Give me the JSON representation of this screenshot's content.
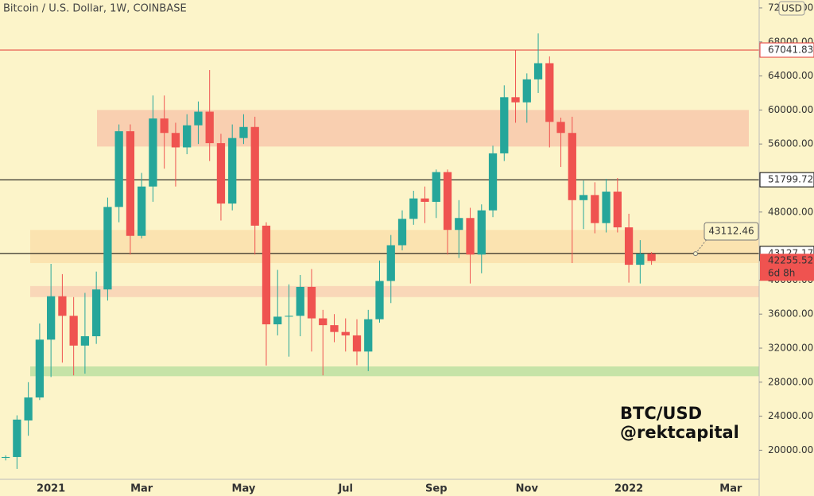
{
  "chart_data": {
    "type": "candlestick",
    "title": "Bitcoin / U.S. Dollar, 1W, COINBASE",
    "currency": "USD",
    "categories": [
      null,
      null,
      null,
      null,
      "2021",
      null,
      null,
      null,
      null,
      null,
      null,
      null,
      "Mar",
      null,
      null,
      null,
      null,
      null,
      null,
      null,
      null,
      "May",
      null,
      null,
      null,
      null,
      null,
      null,
      null,
      null,
      "Jul",
      null,
      null,
      null,
      null,
      null,
      null,
      null,
      "Sep",
      null,
      null,
      null,
      null,
      null,
      null,
      null,
      "Nov",
      null,
      null,
      null,
      null,
      null,
      null,
      null,
      null,
      "2022",
      null,
      null,
      null,
      null,
      null,
      null,
      null,
      null,
      "Mar",
      null,
      null
    ],
    "open": [
      19100,
      19200,
      23500,
      26200,
      33000,
      38100,
      35800,
      32300,
      33400,
      38900,
      48600,
      57500,
      45200,
      51000,
      59000,
      57300,
      55600,
      58200,
      59800,
      56100,
      49000,
      56700,
      58000,
      46400,
      34800,
      35700,
      35800,
      39200,
      35500,
      34700,
      33900,
      33500,
      31600,
      35400,
      39900,
      44100,
      47200,
      49600,
      49200,
      52700,
      45900,
      47300,
      43000,
      48200,
      54900,
      61500,
      60900,
      63600,
      65500,
      58600,
      57300,
      49400,
      50000,
      46700,
      50400,
      46200,
      41800,
      43100,
      null,
      null,
      null,
      null,
      null,
      null,
      null,
      null,
      null
    ],
    "high": [
      19400,
      24100,
      28000,
      34900,
      41900,
      40700,
      38000,
      38500,
      41000,
      49700,
      58300,
      58300,
      52600,
      61700,
      61700,
      58500,
      59500,
      61000,
      64700,
      57200,
      58300,
      59500,
      59200,
      46800,
      41200,
      39500,
      40600,
      41300,
      36500,
      36000,
      35500,
      35400,
      36500,
      42300,
      45300,
      48200,
      50500,
      51000,
      53000,
      53000,
      49400,
      48500,
      48900,
      55800,
      62900,
      67000,
      64300,
      69000,
      66300,
      59100,
      59200,
      51700,
      51500,
      51900,
      52000,
      47800,
      44700,
      43300,
      null,
      null,
      null,
      null,
      null,
      null,
      null,
      null,
      null
    ],
    "low": [
      18800,
      17800,
      21700,
      25900,
      28600,
      30300,
      28800,
      29000,
      32500,
      37600,
      46800,
      43000,
      44900,
      49200,
      53100,
      51000,
      54800,
      56000,
      54000,
      47000,
      48200,
      56000,
      43000,
      29950,
      33500,
      31000,
      33400,
      31600,
      28800,
      32700,
      31600,
      30000,
      29300,
      35000,
      37300,
      43500,
      46500,
      46700,
      47300,
      43000,
      42600,
      39600,
      40800,
      47400,
      54000,
      58500,
      58500,
      62000,
      55600,
      53300,
      42000,
      46000,
      45500,
      45600,
      45600,
      39700,
      39600,
      41800,
      null,
      null,
      null,
      null,
      null,
      null,
      null,
      null,
      null
    ],
    "close": [
      19200,
      23600,
      26200,
      33000,
      38100,
      35800,
      32300,
      33400,
      38900,
      48600,
      57500,
      45200,
      51000,
      59000,
      57300,
      55600,
      58200,
      59800,
      56100,
      49000,
      56700,
      58000,
      46400,
      34800,
      35700,
      35800,
      39200,
      35500,
      34700,
      33900,
      33500,
      31600,
      35400,
      39900,
      44100,
      47200,
      49600,
      49200,
      52700,
      45900,
      47300,
      43000,
      48200,
      54900,
      61500,
      60900,
      63600,
      65500,
      58600,
      57300,
      49400,
      50000,
      46700,
      50400,
      46200,
      41800,
      43100,
      42255.52,
      null,
      null,
      null,
      null,
      null,
      null,
      null,
      null,
      null
    ],
    "up_color": "#26a69a",
    "down_color": "#ef5350",
    "countdown": "6d 8h",
    "ylim": [
      16860,
      72930
    ],
    "yticks": [
      {
        "value": 72000,
        "label": "72000.00"
      },
      {
        "value": 68000,
        "label": "68000.00"
      },
      {
        "value": 64000,
        "label": "64000.00"
      },
      {
        "value": 60000,
        "label": "60000.00"
      },
      {
        "value": 56000,
        "label": "56000.00"
      },
      {
        "value": 48000,
        "label": "48000.00"
      },
      {
        "value": 40000,
        "label": "40000.00"
      },
      {
        "value": 36000,
        "label": "36000.00"
      },
      {
        "value": 32000,
        "label": "32000.00"
      },
      {
        "value": 28000,
        "label": "28000.00"
      },
      {
        "value": 24000,
        "label": "24000.00"
      },
      {
        "value": 20000,
        "label": "20000.00"
      }
    ],
    "zones": [
      {
        "from": 55700,
        "to": 60000,
        "color": "#f9cfb0"
      },
      {
        "from": 42000,
        "to": 45900,
        "color": "#fbe3b0"
      },
      {
        "from": 38000,
        "to": 39300,
        "color": "#f9d7b8"
      },
      {
        "from": 28700,
        "to": 29850,
        "color": "#c6e3a7"
      }
    ],
    "levels": [
      {
        "value": 67041.83,
        "color": "#e53935"
      },
      {
        "value": 51799.72,
        "color": "#000000"
      },
      {
        "value": 43127.17,
        "color": "#000000"
      }
    ],
    "callout": 43112.46,
    "annotations": [
      "BTC/USD",
      "@rektcapital"
    ]
  }
}
